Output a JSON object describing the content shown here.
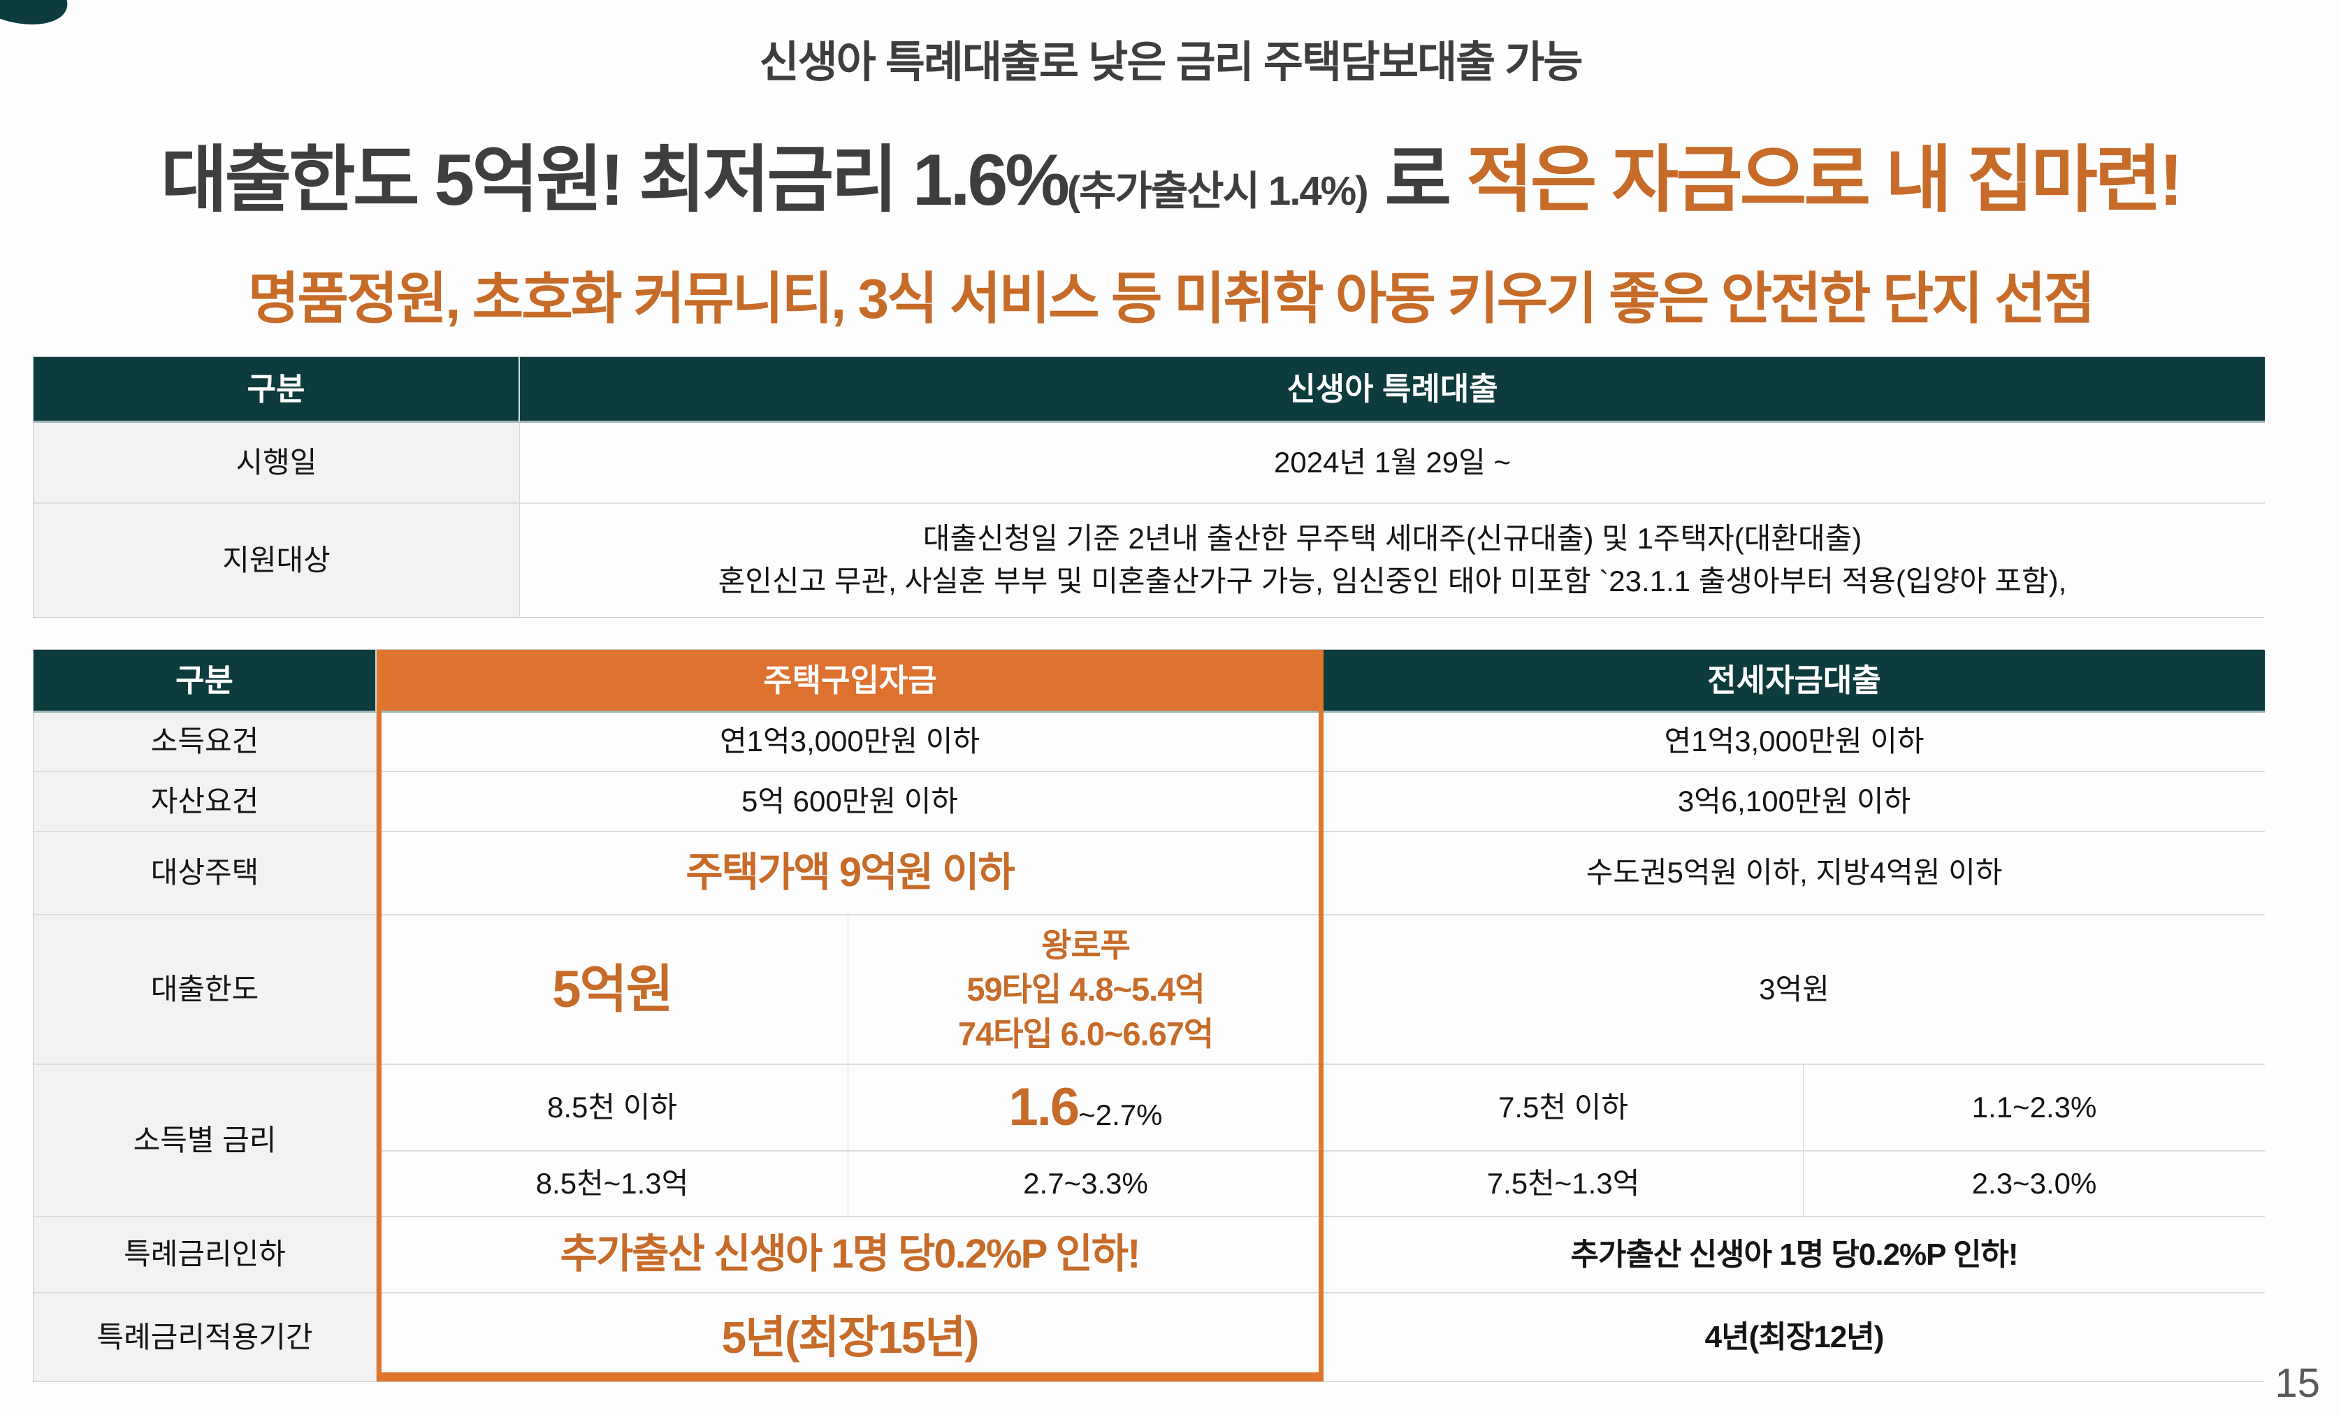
{
  "colors": {
    "teal": "#0d3c3e",
    "orange_bg": "#dd7230",
    "orange_text": "#c76b29",
    "orange_border": "#e0752c",
    "label_bg": "#f2f2f2"
  },
  "header": {
    "line1": "신생아 특례대출로 낮은 금리 주택담보대출 가능",
    "line2_dark": "대출한도 5억원! 최저금리 1.6%",
    "line2_small": "(추가출산시 1.4%)",
    "line2_mid": " 로 ",
    "line2_orange": "적은 자금으로 내 집마련!",
    "line3": "명품정원, 초호화 커뮤니티, 3식 서비스 등 미취학 아동 키우기 좋은 안전한 단지 선점"
  },
  "table1": {
    "header": {
      "col1": "구분",
      "col2": "신생아 특례대출"
    },
    "rows": [
      {
        "label": "시행일",
        "value": "2024년 1월 29일 ~"
      },
      {
        "label": "지원대상",
        "value_line1": "대출신청일 기준 2년내 출산한 무주택 세대주(신규대출) 및 1주택자(대환대출)",
        "value_line2": "혼인신고 무관, 사실혼 부부 및 미혼출산가구 가능, 임신중인 태아 미포함 `23.1.1 출생아부터 적용(입양아 포함),"
      }
    ]
  },
  "table2": {
    "header": {
      "col1": "구분",
      "col2": "주택구입자금",
      "col3": "전세자금대출"
    },
    "rows": {
      "income": {
        "label": "소득요건",
        "purchase": "연1억3,000만원 이하",
        "jeonse": "연1억3,000만원 이하"
      },
      "asset": {
        "label": "자산요건",
        "purchase": "5억 600만원 이하",
        "jeonse": "3억6,100만원 이하"
      },
      "target": {
        "label": "대상주택",
        "purchase": "주택가액 9억원 이하",
        "jeonse": "수도권5억원 이하, 지방4억원 이하"
      },
      "limit": {
        "label": "대출한도",
        "purchase_main": "5억원",
        "purchase_sub1": "왕로푸",
        "purchase_sub2": "59타입 4.8~5.4억",
        "purchase_sub3": "74타입 6.0~6.67억",
        "jeonse": "3억원"
      },
      "rate": {
        "label": "소득별 금리",
        "r1": {
          "p_income": "8.5천 이하",
          "p_rate_big": "1.6",
          "p_rate_small": "~2.7%",
          "j_income": "7.5천 이하",
          "j_rate": "1.1~2.3%"
        },
        "r2": {
          "p_income": "8.5천~1.3억",
          "p_rate": "2.7~3.3%",
          "j_income": "7.5천~1.3억",
          "j_rate": "2.3~3.0%"
        }
      },
      "cut": {
        "label": "특례금리인하",
        "purchase": "추가출산 신생아 1명 당0.2%P 인하!",
        "jeonse": "추가출산 신생아 1명 당0.2%P 인하!"
      },
      "period": {
        "label": "특례금리적용기간",
        "purchase": "5년(최장15년)",
        "jeonse": "4년(최장12년)"
      }
    }
  },
  "page": {
    "number": "15"
  }
}
